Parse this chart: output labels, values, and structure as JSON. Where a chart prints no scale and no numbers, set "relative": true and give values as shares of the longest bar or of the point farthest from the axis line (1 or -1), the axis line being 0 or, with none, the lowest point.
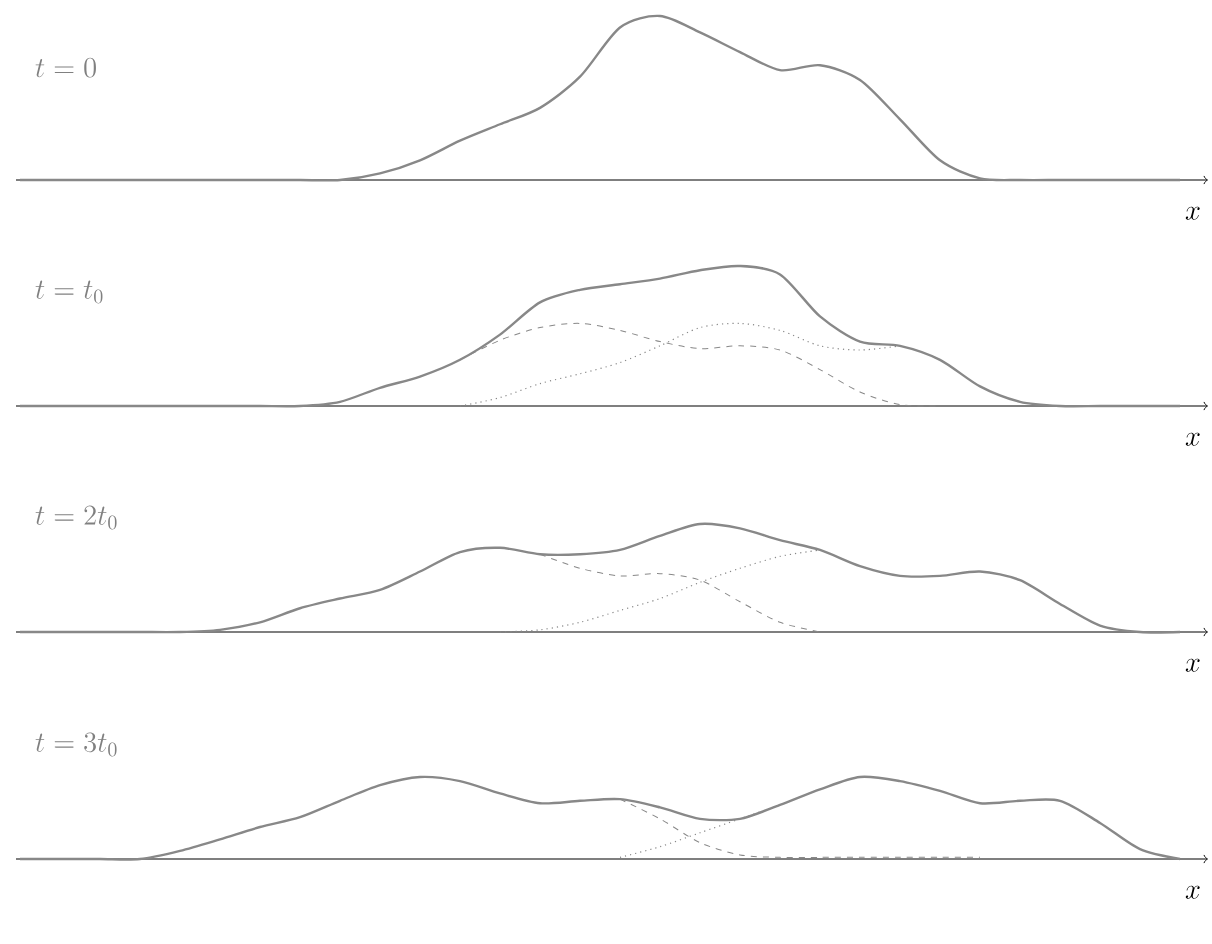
{
  "chart_data": [
    {
      "type": "line",
      "relative": true,
      "title": "t = 0",
      "xlabel": "x",
      "categories": [
        null,
        null,
        null,
        null,
        null,
        null,
        null,
        null,
        null,
        null,
        null,
        null,
        null,
        null,
        null,
        null,
        null,
        null,
        null,
        null,
        null,
        null,
        null,
        null,
        null,
        null,
        null,
        null,
        null,
        null
      ],
      "series": [
        {
          "color": "#888888",
          "line_style": "solid",
          "values": [
            0,
            0,
            0,
            0,
            0,
            0,
            0,
            0,
            0,
            0.04,
            0.12,
            0.24,
            0.34,
            0.44,
            0.63,
            0.93,
            1,
            0.9,
            0.78,
            0.67,
            0.7,
            0.61,
            0.37,
            0.12,
            0.01,
            0,
            0,
            0,
            0,
            0
          ]
        }
      ]
    },
    {
      "type": "line",
      "relative": true,
      "title": "t = t_0",
      "xlabel": "x",
      "categories": [
        null,
        null,
        null,
        null,
        null,
        null,
        null,
        null,
        null,
        null,
        null,
        null,
        null,
        null,
        null,
        null,
        null,
        null,
        null,
        null,
        null,
        null,
        null,
        null,
        null,
        null,
        null,
        null,
        null,
        null
      ],
      "series": [
        {
          "color": "#888888",
          "line_style": "solid",
          "values": [
            0,
            0,
            0,
            0,
            0,
            0,
            0,
            0,
            0.03,
            0.13,
            0.21,
            0.33,
            0.51,
            0.74,
            0.83,
            0.87,
            0.91,
            0.97,
            1,
            0.94,
            0.64,
            0.46,
            0.43,
            0.33,
            0.14,
            0.03,
            0,
            0,
            0,
            0
          ]
        },
        {
          "color": "#888888",
          "line_style": "dashed",
          "values": [
            null,
            null,
            null,
            null,
            null,
            null,
            null,
            null,
            null,
            null,
            null,
            0.33,
            0.47,
            0.56,
            0.59,
            0.54,
            0.46,
            0.41,
            0.43,
            0.4,
            0.26,
            0.1,
            0.01,
            0,
            null,
            null,
            null,
            null,
            null,
            null
          ]
        },
        {
          "color": "#888888",
          "line_style": "dotted",
          "values": [
            null,
            null,
            null,
            null,
            null,
            null,
            null,
            null,
            null,
            null,
            null,
            0,
            0.06,
            0.16,
            0.23,
            0.31,
            0.43,
            0.56,
            0.59,
            0.54,
            0.43,
            0.4,
            0.43,
            null,
            null,
            null,
            null,
            null,
            null,
            null
          ]
        }
      ]
    },
    {
      "type": "line",
      "relative": true,
      "title": "t = 2t_0",
      "xlabel": "x",
      "categories": [
        null,
        null,
        null,
        null,
        null,
        null,
        null,
        null,
        null,
        null,
        null,
        null,
        null,
        null,
        null,
        null,
        null,
        null,
        null,
        null,
        null,
        null,
        null,
        null,
        null,
        null,
        null,
        null,
        null,
        null
      ],
      "series": [
        {
          "color": "#888888",
          "line_style": "solid",
          "values": [
            0,
            0,
            0,
            0,
            0,
            0.02,
            0.09,
            0.22,
            0.31,
            0.39,
            0.56,
            0.74,
            0.78,
            0.72,
            0.72,
            0.76,
            0.89,
            1,
            0.96,
            0.85,
            0.76,
            0.61,
            0.52,
            0.52,
            0.56,
            0.48,
            0.26,
            0.06,
            0,
            0
          ]
        },
        {
          "color": "#888888",
          "line_style": "dashed",
          "values": [
            null,
            null,
            null,
            null,
            null,
            null,
            null,
            null,
            null,
            null,
            null,
            null,
            null,
            0.72,
            0.59,
            0.52,
            0.54,
            0.48,
            0.28,
            0.09,
            0,
            null,
            null,
            null,
            null,
            null,
            null,
            null,
            null,
            null
          ]
        },
        {
          "color": "#888888",
          "line_style": "dotted",
          "values": [
            null,
            null,
            null,
            null,
            null,
            null,
            null,
            null,
            null,
            null,
            null,
            null,
            0,
            0.02,
            0.09,
            0.2,
            0.31,
            0.46,
            0.59,
            0.7,
            0.76,
            null,
            null,
            null,
            null,
            null,
            null,
            null,
            null,
            null
          ]
        }
      ]
    },
    {
      "type": "line",
      "relative": true,
      "title": "t = 3t_0",
      "xlabel": "x",
      "categories": [
        null,
        null,
        null,
        null,
        null,
        null,
        null,
        null,
        null,
        null,
        null,
        null,
        null,
        null,
        null,
        null,
        null,
        null,
        null,
        null,
        null,
        null,
        null,
        null,
        null,
        null,
        null,
        null,
        null,
        null
      ],
      "series": [
        {
          "color": "#888888",
          "line_style": "solid",
          "values": [
            0,
            0,
            0,
            0,
            0.1,
            0.24,
            0.39,
            0.51,
            0.71,
            0.9,
            1,
            0.95,
            0.8,
            0.68,
            0.71,
            0.73,
            0.63,
            0.49,
            0.49,
            0.66,
            0.85,
            1,
            0.95,
            0.83,
            0.68,
            0.71,
            0.71,
            0.44,
            0.12,
            0
          ]
        },
        {
          "color": "#888888",
          "line_style": "dashed",
          "values": [
            null,
            null,
            null,
            null,
            null,
            null,
            null,
            null,
            null,
            null,
            null,
            null,
            null,
            null,
            null,
            0.73,
            0.49,
            0.2,
            0.05,
            0.02,
            0.02,
            0.02,
            0.02,
            0.02,
            0.02,
            null,
            null,
            null,
            null,
            null
          ]
        },
        {
          "color": "#888888",
          "line_style": "dotted",
          "values": [
            null,
            null,
            null,
            null,
            null,
            null,
            null,
            null,
            null,
            null,
            null,
            null,
            null,
            null,
            null,
            0.02,
            0.15,
            0.32,
            0.49,
            0.66,
            null,
            null,
            null,
            null,
            null,
            null,
            null,
            null,
            null,
            null
          ]
        }
      ]
    }
  ]
}
